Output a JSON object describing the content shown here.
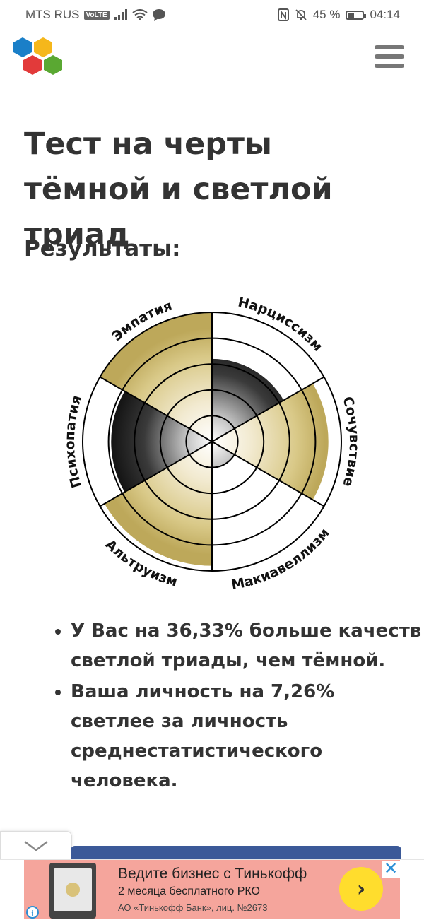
{
  "status_bar": {
    "carrier": "MTS RUS",
    "volte": "VoLTE",
    "battery_percent": "45 %",
    "battery_level": 0.45,
    "time": "04:14",
    "icons": [
      "signal-icon",
      "wifi-icon",
      "talk-icon",
      "nfc-icon",
      "mute-bell-icon",
      "battery-icon"
    ]
  },
  "header": {
    "logo_icon": "hexagon-logo-icon",
    "logo_colors": [
      "#1a7fc8",
      "#f5b71b",
      "#e23a3a",
      "#5aa832"
    ],
    "menu_icon": "hamburger-menu-icon"
  },
  "page": {
    "title": "Тест на черты тёмной и светлой триад",
    "results_heading": "Результаты:"
  },
  "chart_data": {
    "type": "polar-area",
    "rings": 5,
    "max": 5,
    "colors": {
      "light": "#c2ad5c",
      "dark": "#111111",
      "grid": "#000000"
    },
    "sectors": [
      {
        "label": "Нарциссизм",
        "value": 3.2,
        "kind": "dark"
      },
      {
        "label": "Сочувствие",
        "value": 4.5,
        "kind": "light"
      },
      {
        "label": "Макиавеллизм",
        "value": 1.0,
        "kind": "dark"
      },
      {
        "label": "Альтруизм",
        "value": 4.8,
        "kind": "light"
      },
      {
        "label": "Психопатия",
        "value": 3.9,
        "kind": "dark"
      },
      {
        "label": "Эмпатия",
        "value": 5.0,
        "kind": "light"
      }
    ]
  },
  "results": [
    "У Вас на 36,33% больше качеств светлой триады, чем тёмной.",
    "Ваша личность на 7,26% светлее за личность среднестатистического человека."
  ],
  "ad": {
    "title": "Ведите бизнес с Тинькофф",
    "subtitle": "2 месяца бесплатного РКО",
    "legal": "АО «Тинькофф Банк», лиц. №2673",
    "go_icon": "chevron-right-icon",
    "close_icon": "close-icon",
    "info_icon": "info-icon",
    "close_label": "✕",
    "info_label": "i",
    "go_label": "›"
  },
  "collapse_icon": "chevron-down-icon"
}
